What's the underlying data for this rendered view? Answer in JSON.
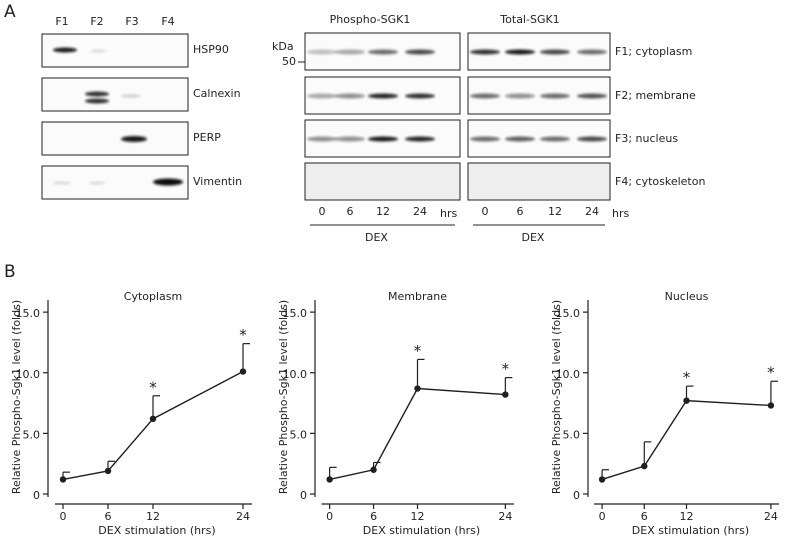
{
  "panel_labels": [
    "A",
    "B"
  ],
  "fraction_blot": {
    "columns": [
      "F1",
      "F2",
      "F3",
      "F4"
    ],
    "rows": [
      "HSP90",
      "Calnexin",
      "PERP",
      "Vimentin"
    ]
  },
  "sgk1_blots": {
    "titles": [
      "Phospho-SGK1",
      "Total-SGK1"
    ],
    "kda_label": "kDa",
    "marker": "50",
    "rows": [
      "F1; cytoplasm",
      "F2; membrane",
      "F3; nucleus",
      "F4; cytoskeleton"
    ],
    "time_labels": [
      "0",
      "6",
      "12",
      "24"
    ],
    "time_unit": "hrs",
    "treatment": "DEX"
  },
  "chart_data": [
    {
      "type": "line",
      "title": "Cytoplasm",
      "x": [
        0,
        6,
        12,
        24
      ],
      "series": [
        {
          "color": "#231f20",
          "values": [
            1.2,
            1.9,
            6.2,
            10.1
          ],
          "errors": [
            0.6,
            0.8,
            1.9,
            2.3
          ]
        }
      ],
      "xlim": [
        -2,
        26
      ],
      "xticks": [
        0,
        6,
        12,
        24
      ],
      "ylim": [
        0,
        16
      ],
      "yticks": [
        0,
        {
          "value": 5,
          "label": "5.0"
        },
        {
          "value": 10,
          "label": "10.0"
        },
        {
          "value": 15,
          "label": "15.0"
        }
      ],
      "xlabel": "DEX stimulation (hrs)",
      "ylabel": "Relative Phospho-Sgk1 level (folds)",
      "annotations": [
        {
          "x": 12,
          "text": "*"
        },
        {
          "x": 24,
          "text": "*"
        }
      ]
    },
    {
      "type": "line",
      "title": "Membrane",
      "x": [
        0,
        6,
        12,
        24
      ],
      "series": [
        {
          "color": "#231f20",
          "values": [
            1.2,
            2.0,
            8.7,
            8.2
          ],
          "errors": [
            1.0,
            0.6,
            2.4,
            1.4
          ]
        }
      ],
      "xlim": [
        -2,
        26
      ],
      "xticks": [
        0,
        6,
        12,
        24
      ],
      "ylim": [
        0,
        16
      ],
      "yticks": [
        0,
        {
          "value": 5,
          "label": "5.0"
        },
        {
          "value": 10,
          "label": "10.0"
        },
        {
          "value": 15,
          "label": "15.0"
        }
      ],
      "xlabel": "DEX stimulation (hrs)",
      "ylabel": "Relative Phospho-Sgk1 level (folds)",
      "annotations": [
        {
          "x": 12,
          "text": "*"
        },
        {
          "x": 24,
          "text": "*"
        }
      ]
    },
    {
      "type": "line",
      "title": "Nucleus",
      "x": [
        0,
        6,
        12,
        24
      ],
      "series": [
        {
          "color": "#231f20",
          "values": [
            1.2,
            2.3,
            7.7,
            7.3
          ],
          "errors": [
            0.8,
            2.0,
            1.2,
            2.0
          ]
        }
      ],
      "xlim": [
        -2,
        26
      ],
      "xticks": [
        0,
        6,
        12,
        24
      ],
      "ylim": [
        0,
        16
      ],
      "yticks": [
        0,
        {
          "value": 5,
          "label": "5.0"
        },
        {
          "value": 10,
          "label": "10.0"
        },
        {
          "value": 15,
          "label": "15.0"
        }
      ],
      "xlabel": "DEX stimulation (hrs)",
      "ylabel": "Relative Phospho-Sgk1 level (folds)",
      "annotations": [
        {
          "x": 12,
          "text": "*"
        },
        {
          "x": 24,
          "text": "*"
        }
      ]
    }
  ]
}
